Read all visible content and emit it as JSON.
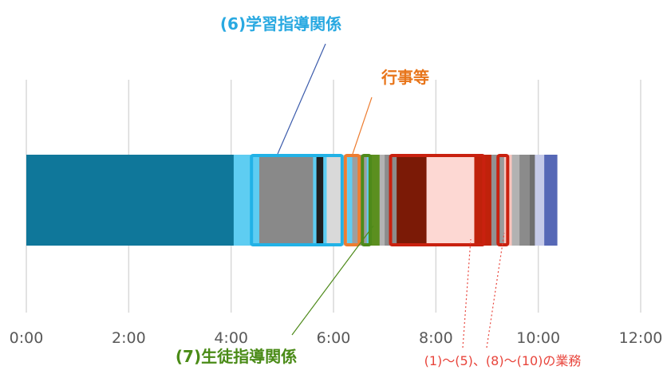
{
  "chart_data": {
    "type": "bar",
    "orientation": "horizontal-stacked",
    "xlim_minutes": [
      0,
      720
    ],
    "tick_labels": [
      "0:00",
      "2:00",
      "4:00",
      "6:00",
      "8:00",
      "10:00",
      "12:00"
    ],
    "grid": true,
    "segments": [
      {
        "minutes": 243,
        "color": "#0f779a"
      },
      {
        "minutes": 30,
        "color": "#5ecdf2"
      },
      {
        "minutes": 63,
        "color": "#898989"
      },
      {
        "minutes": 4,
        "color": "#5ecdf2"
      },
      {
        "minutes": 8,
        "color": "#1e1e1e"
      },
      {
        "minutes": 4,
        "color": "#5ecdf2"
      },
      {
        "minutes": 24,
        "color": "#d9d9d9"
      },
      {
        "minutes": 6,
        "color": "#5ecdf2"
      },
      {
        "minutes": 17,
        "color": "#9e9e9e"
      },
      {
        "minutes": 2,
        "color": "#5ecdf2"
      },
      {
        "minutes": 13,
        "color": "#5b8f1f"
      },
      {
        "minutes": 6,
        "color": "#b3b3b3"
      },
      {
        "minutes": 14,
        "color": "#8c8c8c"
      },
      {
        "minutes": 35,
        "color": "#7b1a06"
      },
      {
        "minutes": 56,
        "color": "#fdd8d3"
      },
      {
        "minutes": 20,
        "color": "#c0220b"
      },
      {
        "minutes": 7,
        "color": "#929292"
      },
      {
        "minutes": 3,
        "color": "#3cc7c7"
      },
      {
        "minutes": 5,
        "color": "#9a9a9a"
      },
      {
        "minutes": 9,
        "color": "#f9c6bf"
      },
      {
        "minutes": 9,
        "color": "#b2b2b2"
      },
      {
        "minutes": 12,
        "color": "#8b8b8b"
      },
      {
        "minutes": 6,
        "color": "#6f6f6f"
      },
      {
        "minutes": 11,
        "color": "#c5cae8"
      },
      {
        "minutes": 15,
        "color": "#5668b6"
      }
    ],
    "outlines": [
      {
        "start": 262,
        "end": 372,
        "color": "#22b2e6"
      },
      {
        "start": 372,
        "end": 392,
        "color": "#ed7d31"
      },
      {
        "start": 392,
        "end": 405,
        "color": "#4e8a1a"
      },
      {
        "start": 425,
        "end": 538,
        "color": "#c9210f"
      },
      {
        "start": 551,
        "end": 566,
        "color": "#c9210f"
      }
    ],
    "annotations": [
      {
        "text": "(6)学習指導関係",
        "color": "#29a9e1"
      },
      {
        "text": "行事等",
        "color": "#e8751a"
      },
      {
        "text": "(7)生徒指導関係",
        "color": "#4a8b17"
      },
      {
        "text": "(1)〜(5)、(8)〜(10)の業務",
        "color": "#e8453c"
      }
    ]
  }
}
